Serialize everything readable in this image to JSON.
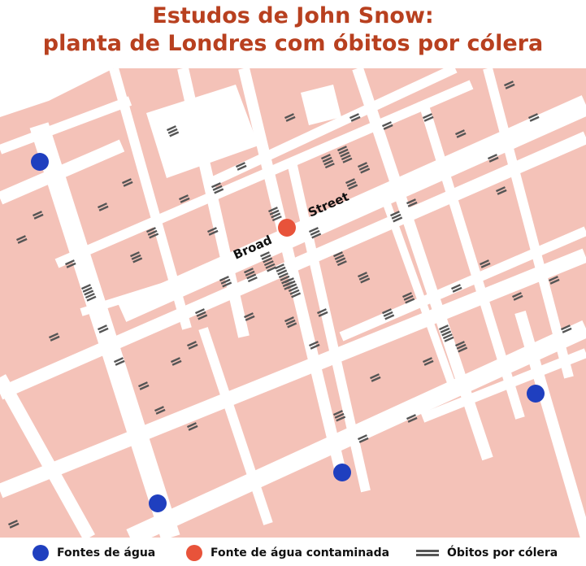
{
  "title": {
    "line1": "Estudos de John Snow:",
    "line2": "planta de Londres com óbitos por cólera"
  },
  "map": {
    "street_label_1": "Broad",
    "street_label_2": "Street",
    "colors": {
      "block": "#f4c2b8",
      "street": "#ffffff",
      "water_pump": "#1f3fbf",
      "contaminated_pump": "#e8533a",
      "death_mark": "#555555",
      "title": "#b8401f"
    }
  },
  "legend": {
    "water_pumps": "Fontes de água",
    "contaminated_pump": "Fonte de água contaminada",
    "cholera_deaths": "Óbitos por cólera"
  }
}
